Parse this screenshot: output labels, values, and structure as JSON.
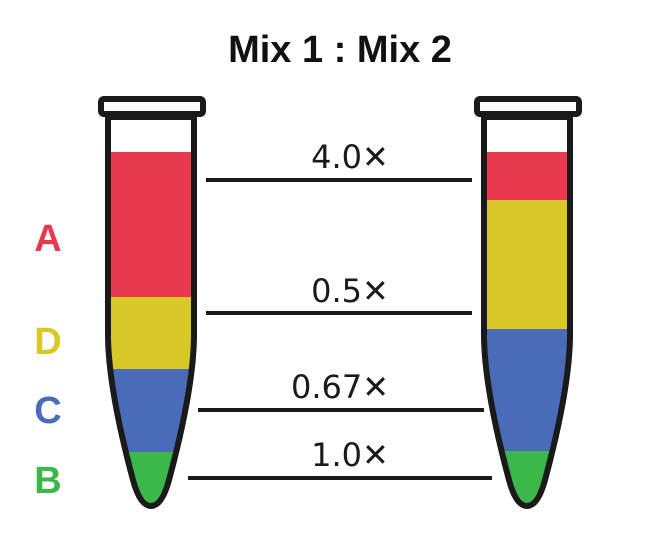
{
  "title": "Mix 1 : Mix 2",
  "colors": {
    "A": "#e8394f",
    "D": "#d8c928",
    "C": "#4a6cb8",
    "B": "#3cb84a",
    "outline": "#1a1a1a"
  },
  "legend": [
    {
      "letter": "A",
      "color": "#e8394f"
    },
    {
      "letter": "D",
      "color": "#d8c928"
    },
    {
      "letter": "C",
      "color": "#4a6cb8"
    },
    {
      "letter": "B",
      "color": "#3cb84a"
    }
  ],
  "ratios": [
    "4.0✕",
    "0.5✕",
    "0.67✕",
    "1.0✕"
  ]
}
